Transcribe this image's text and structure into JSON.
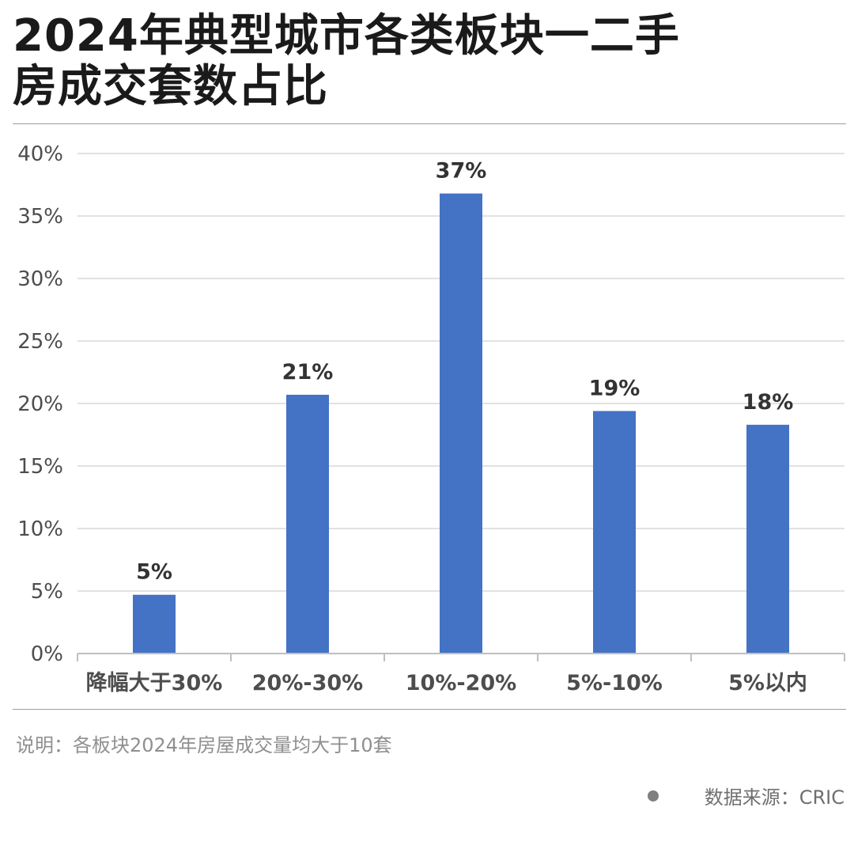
{
  "title": {
    "line1": "2024年典型城市各类板块一二手",
    "line2": "房成交套数占比"
  },
  "footer": {
    "note": "说明：各板块2024年房屋成交量均大于10套",
    "source": "数据来源：CRIC"
  },
  "colors": {
    "bar": "#4472c4",
    "grid": "#d9d9d9",
    "axis": "#bfbfbf",
    "tick_text": "#4d4d4d",
    "label_text": "#333333"
  },
  "chart_data": {
    "type": "bar",
    "title": "2024年典型城市各类板块一二手房成交套数占比",
    "xlabel": "",
    "ylabel": "",
    "categories": [
      "降幅大于30%",
      "20%-30%",
      "10%-20%",
      "5%-10%",
      "5%以内"
    ],
    "values": [
      4.7,
      20.7,
      36.8,
      19.4,
      18.3
    ],
    "data_labels": [
      "5%",
      "21%",
      "37%",
      "19%",
      "18%"
    ],
    "ylim": [
      0,
      40
    ],
    "yticks": [
      0,
      5,
      10,
      15,
      20,
      25,
      30,
      35,
      40
    ],
    "ytick_labels": [
      "0%",
      "5%",
      "10%",
      "15%",
      "20%",
      "25%",
      "30%",
      "35%",
      "40%"
    ],
    "grid": true,
    "legend": "none"
  }
}
